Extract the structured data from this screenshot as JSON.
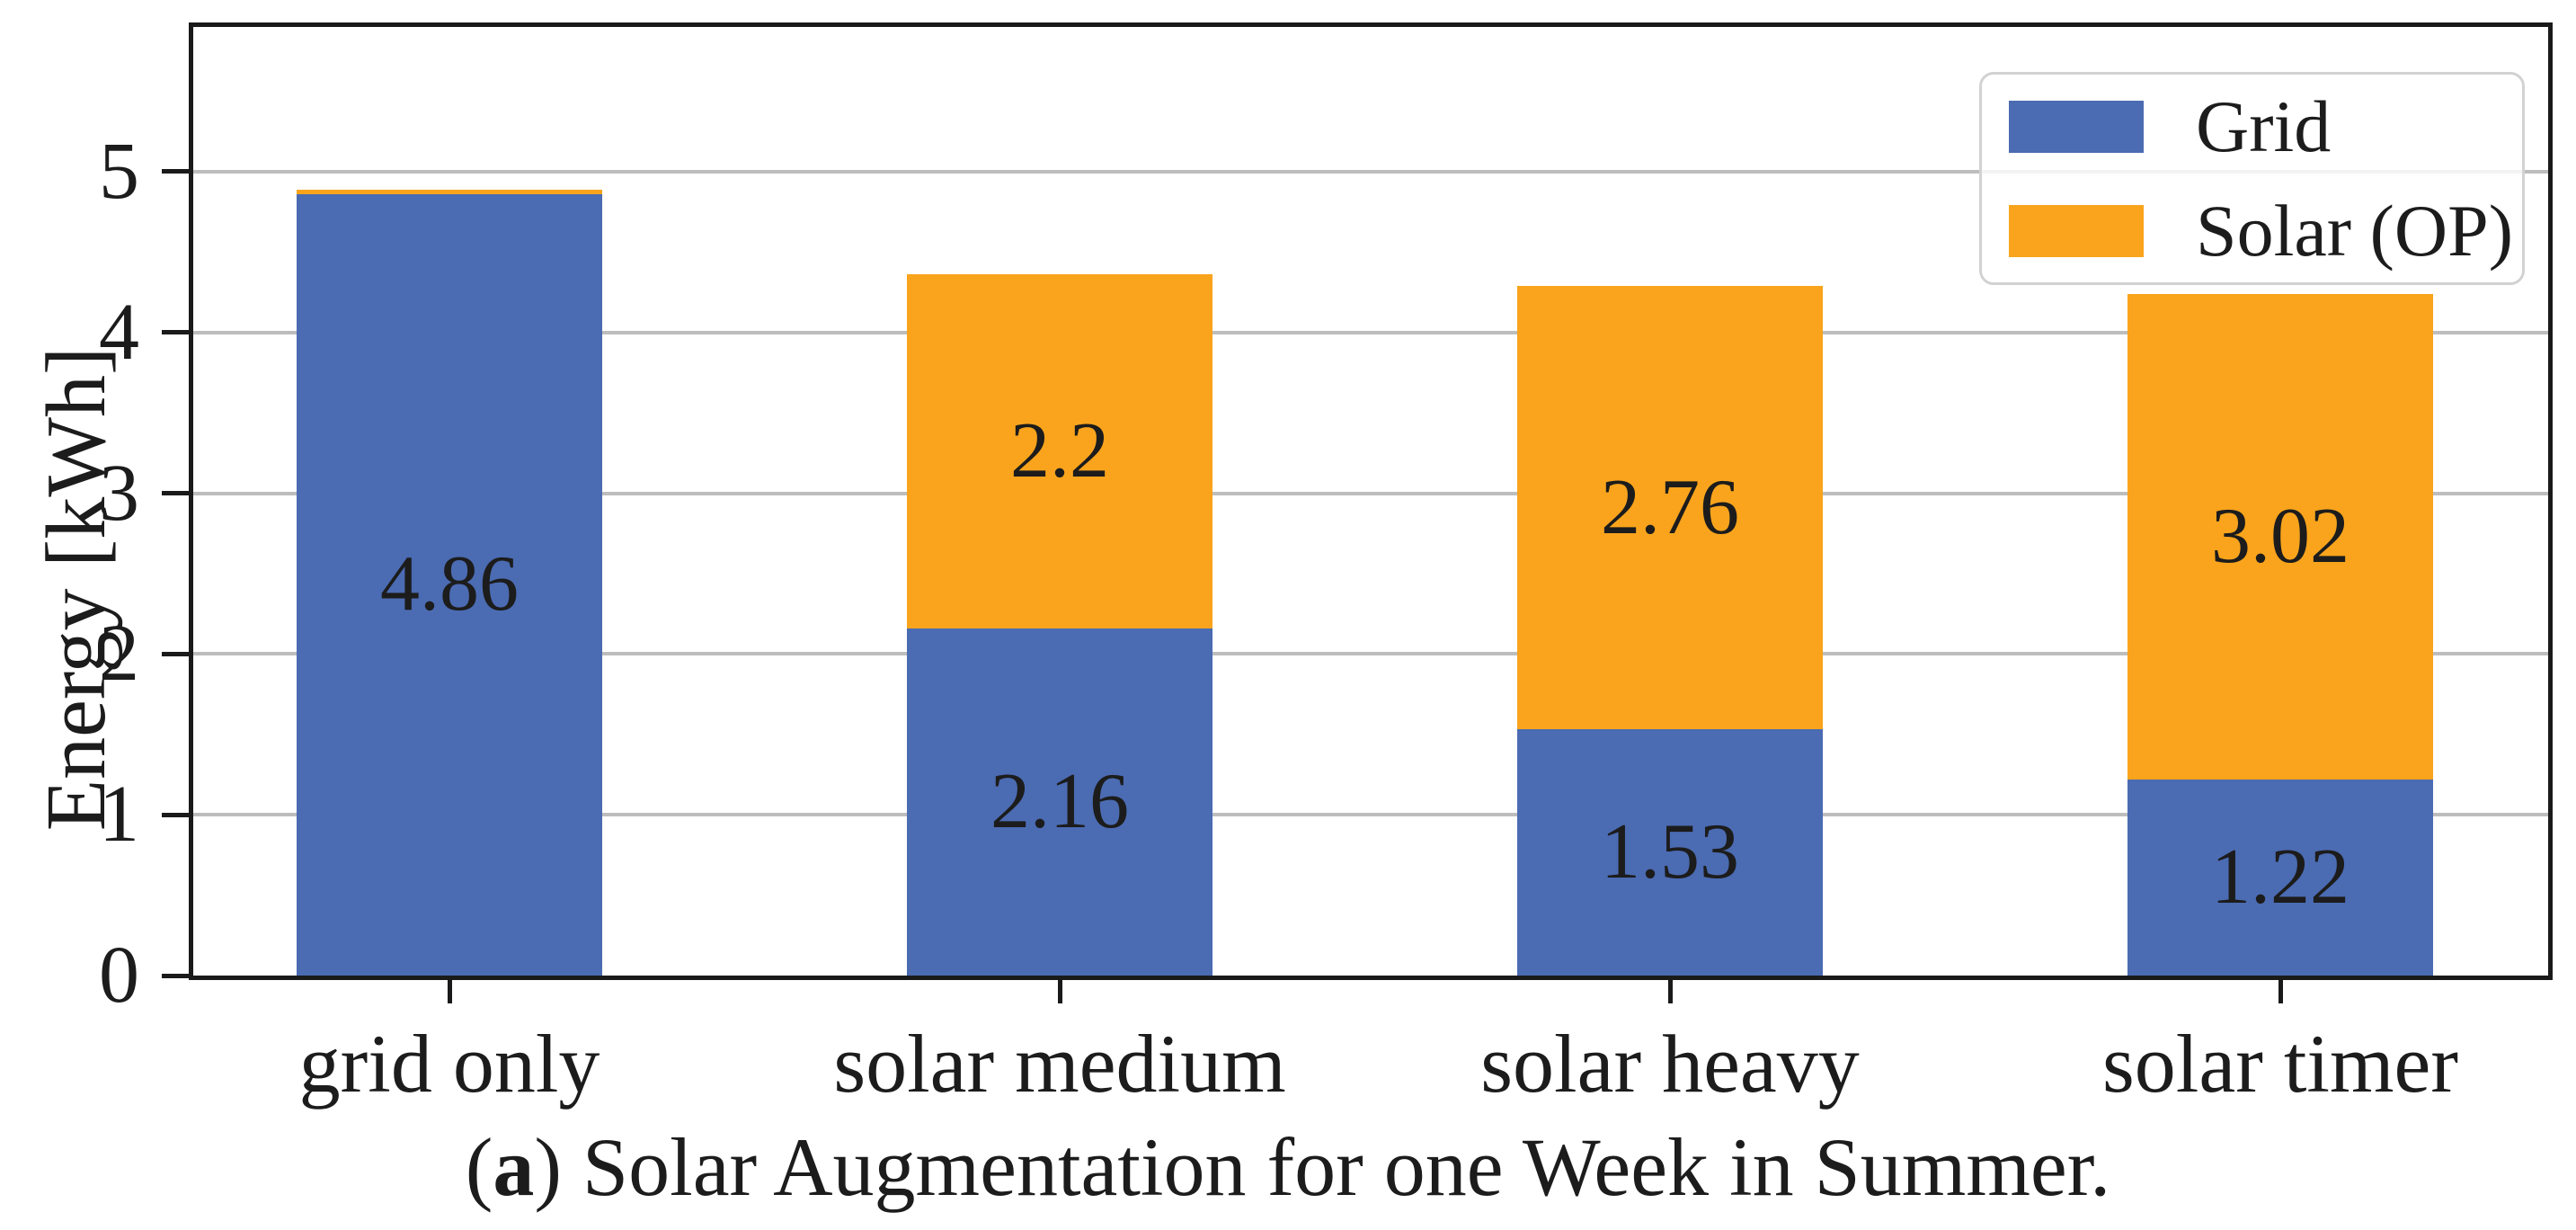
{
  "caption": {
    "open": "(",
    "marker": "a",
    "close": ")",
    "text": "Solar Augmentation for one Week in Summer."
  },
  "chart_data": {
    "type": "bar",
    "stacked": true,
    "title": "",
    "xlabel": "",
    "ylabel": "Energy [kWh]",
    "categories": [
      "grid only",
      "solar medium",
      "solar heavy",
      "solar timer"
    ],
    "series": [
      {
        "name": "Grid",
        "color": "#4B6BB2",
        "values": [
          4.86,
          2.16,
          1.53,
          1.22
        ],
        "labels": [
          "4.86",
          "2.16",
          "1.53",
          "1.22"
        ]
      },
      {
        "name": "Solar (OP)",
        "color": "#F9A41C",
        "values": [
          0.03,
          2.2,
          2.76,
          3.02
        ],
        "labels": [
          null,
          "2.2",
          "2.76",
          "3.02"
        ]
      }
    ],
    "ylim": [
      0,
      5.9
    ],
    "y_ticks": [
      0,
      1,
      2,
      3,
      4,
      5
    ],
    "grid": "horizontal",
    "legend_position": "upper right",
    "colors": {
      "grid_line": "#BDBDBD",
      "spine": "#1A1A1A",
      "tick": "#1A1A1A",
      "label_text": "#1C1C1C"
    }
  }
}
